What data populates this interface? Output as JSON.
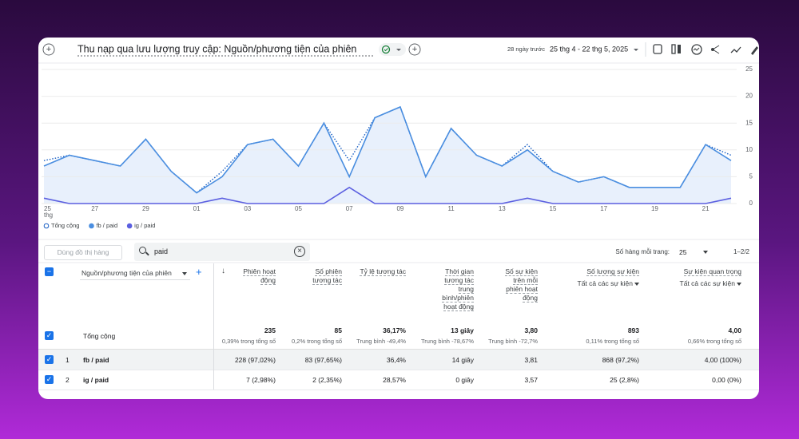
{
  "header": {
    "title": "Thu nạp qua lưu lượng truy cập: Nguồn/phương tiện của phiên",
    "date_prefix": "28 ngày trước",
    "date_range": "25 thg 4 - 22 thg 5, 2025"
  },
  "chart_data": {
    "type": "line",
    "categories": [
      "25",
      null,
      "27",
      null,
      "29",
      null,
      "01",
      null,
      "03",
      null,
      "05",
      null,
      "07",
      null,
      "09",
      null,
      "11",
      null,
      "13",
      null,
      "15",
      null,
      "17",
      null,
      "19",
      null,
      "21",
      null
    ],
    "x_sublabel": "thg",
    "series": [
      {
        "name": "Tổng cộng",
        "color": "#1a5fc4",
        "line_style": "dotted",
        "values": [
          8,
          9,
          8,
          7,
          12,
          6,
          2,
          6,
          11,
          12,
          7,
          15,
          8,
          16,
          18,
          5,
          14,
          9,
          7,
          11,
          6,
          4,
          5,
          3,
          3,
          3,
          11,
          9
        ]
      },
      {
        "name": "fb / paid",
        "color": "#4a8ee0",
        "fill": "#e8f0fc",
        "values": [
          7,
          9,
          8,
          7,
          12,
          6,
          2,
          5,
          11,
          12,
          7,
          15,
          5,
          16,
          18,
          5,
          14,
          9,
          7,
          10,
          6,
          4,
          5,
          3,
          3,
          3,
          11,
          8
        ]
      },
      {
        "name": "ig / paid",
        "color": "#5b5fe0",
        "values": [
          1,
          0,
          0,
          0,
          0,
          0,
          0,
          1,
          0,
          0,
          0,
          0,
          3,
          0,
          0,
          0,
          0,
          0,
          0,
          1,
          0,
          0,
          0,
          0,
          0,
          0,
          0,
          1
        ]
      }
    ],
    "ylim": [
      0,
      25
    ],
    "yticks": [
      0,
      5,
      10,
      15,
      20,
      25
    ],
    "grid": true
  },
  "toolbar": {
    "plot_rows": "Dùng đồ thị hàng",
    "search": "paid",
    "rows_per_page_label": "Số hàng mỗi trang:",
    "rows_per_page": 25,
    "pagination": "1–2/2"
  },
  "table": {
    "dimension": "Nguồn/phương tiện của phiên",
    "columns": [
      {
        "label": "Phiên hoạt động"
      },
      {
        "label": "Số phiên tương tác"
      },
      {
        "label": "Tỷ lệ tương tác"
      },
      {
        "label": "Thời gian tương tác trung bình/phiên hoạt động"
      },
      {
        "label": "Số sự kiện trên mỗi phiên hoạt động"
      },
      {
        "label": "Số lượng sự kiện",
        "sub": "Tất cả các sự kiện"
      },
      {
        "label": "Sự kiện quan trọng",
        "sub": "Tất cả các sự kiện"
      }
    ],
    "total": {
      "label": "Tổng cộng",
      "cells": [
        {
          "value": "235",
          "note": "0,39% trong tổng số"
        },
        {
          "value": "85",
          "note": "0,2% trong tổng số"
        },
        {
          "value": "36,17%",
          "note": "Trung bình -49,4%"
        },
        {
          "value": "13 giây",
          "note": "Trung bình -78,67%"
        },
        {
          "value": "3,80",
          "note": "Trung bình -72,7%"
        },
        {
          "value": "893",
          "note": "0,11% trong tổng số"
        },
        {
          "value": "4,00",
          "note": "0,66% trong tổng số"
        }
      ]
    },
    "rows": [
      {
        "index": 1,
        "name": "fb / paid",
        "cells": [
          "228 (97,02%)",
          "83 (97,65%)",
          "36,4%",
          "14 giây",
          "3,81",
          "868 (97,2%)",
          "4,00 (100%)"
        ]
      },
      {
        "index": 2,
        "name": "ig / paid",
        "cells": [
          "7 (2,98%)",
          "2 (2,35%)",
          "28,57%",
          "0 giây",
          "3,57",
          "25 (2,8%)",
          "0,00 (0%)"
        ]
      }
    ]
  }
}
